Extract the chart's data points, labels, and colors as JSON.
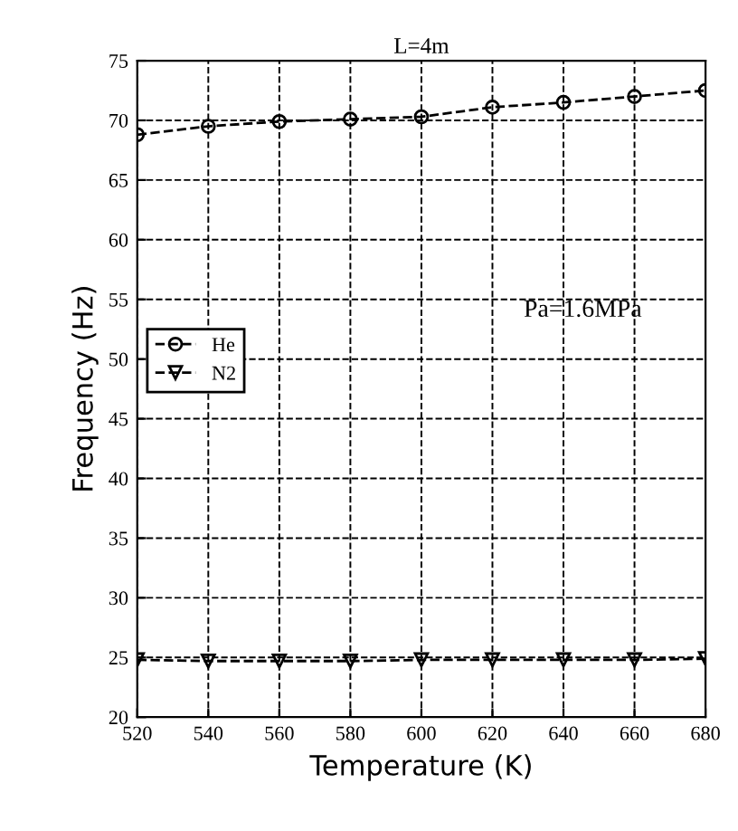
{
  "chart_data": {
    "type": "line",
    "title": "L=4m",
    "xlabel": "Temperature (K)",
    "ylabel": "Frequency (Hz)",
    "x": [
      520,
      540,
      560,
      580,
      600,
      620,
      640,
      660,
      680
    ],
    "series": [
      {
        "name": "He",
        "color": "#000000",
        "marker": "circle",
        "values": [
          68.8,
          69.5,
          69.9,
          70.1,
          70.3,
          71.1,
          71.5,
          72.0,
          72.5
        ]
      },
      {
        "name": "N2",
        "color": "#000000",
        "marker": "triangle",
        "values": [
          24.8,
          24.7,
          24.7,
          24.7,
          24.8,
          24.8,
          24.8,
          24.8,
          24.9
        ]
      }
    ],
    "xlim": [
      520,
      680
    ],
    "xticks": [
      520,
      540,
      560,
      580,
      600,
      620,
      640,
      660,
      680
    ],
    "ylim": [
      20,
      75
    ],
    "yticks": [
      20,
      25,
      30,
      35,
      40,
      45,
      50,
      55,
      60,
      65,
      70,
      75
    ],
    "annotations": [
      "Pa=1.6MPa"
    ],
    "grid": true,
    "legend": "top left",
    "line_style": "dashed"
  }
}
